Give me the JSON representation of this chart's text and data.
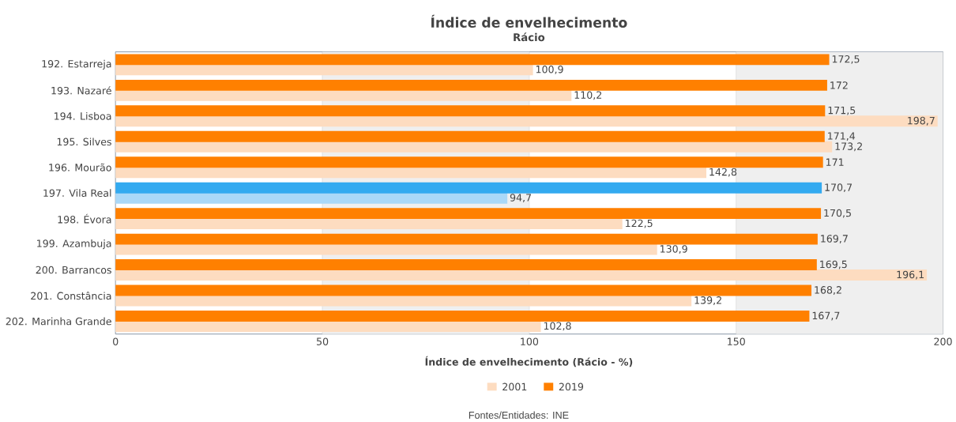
{
  "chart_data": {
    "type": "bar",
    "orientation": "horizontal",
    "title": "Índice de envelhecimento",
    "subtitle": "Rácio",
    "xlabel": "Índice de envelhecimento (Rácio - %)",
    "categories": [
      "192. Estarreja",
      "193. Nazaré",
      "194. Lisboa",
      "195. Silves",
      "196. Mourão",
      "197. Vila Real",
      "198. Évora",
      "199. Azambuja",
      "200. Barrancos",
      "201. Constância",
      "202. Marinha Grande"
    ],
    "series": [
      {
        "name": "2001",
        "color": "#fddcc0",
        "colors": [
          "#fddcc0",
          "#fddcc0",
          "#fddcc0",
          "#fddcc0",
          "#fddcc0",
          "#aad8f8",
          "#fddcc0",
          "#fddcc0",
          "#fddcc0",
          "#fddcc0",
          "#fddcc0"
        ],
        "values": [
          100.9,
          110.2,
          198.7,
          173.2,
          142.8,
          94.7,
          122.5,
          130.9,
          196.1,
          139.2,
          102.8
        ],
        "value_labels": [
          "100,9",
          "110,2",
          "198,7",
          "173,2",
          "142,8",
          "94,7",
          "122,5",
          "130,9",
          "196,1",
          "139,2",
          "102,8"
        ]
      },
      {
        "name": "2019",
        "color": "#ff8000",
        "colors": [
          "#ff8000",
          "#ff8000",
          "#ff8000",
          "#ff8000",
          "#ff8000",
          "#33aaf0",
          "#ff8000",
          "#ff8000",
          "#ff8000",
          "#ff8000",
          "#ff8000"
        ],
        "values": [
          172.5,
          172,
          171.5,
          171.4,
          171,
          170.7,
          170.5,
          169.7,
          169.5,
          168.2,
          167.7
        ],
        "value_labels": [
          "172,5",
          "172",
          "171,5",
          "171,4",
          "171",
          "170,7",
          "170,5",
          "169,7",
          "169,5",
          "168,2",
          "167,7"
        ]
      }
    ],
    "xlim": [
      0,
      200
    ],
    "xticks": [
      0,
      50,
      100,
      150,
      200
    ],
    "grid": "x",
    "legend": "bottom",
    "bands": [
      {
        "axis": "x",
        "from": 50,
        "to": 100,
        "color": "#efefef"
      },
      {
        "axis": "x",
        "from": 150,
        "to": 200,
        "color": "#efefef"
      }
    ],
    "annotations": [
      "Fontes/Entidades: INE"
    ]
  }
}
